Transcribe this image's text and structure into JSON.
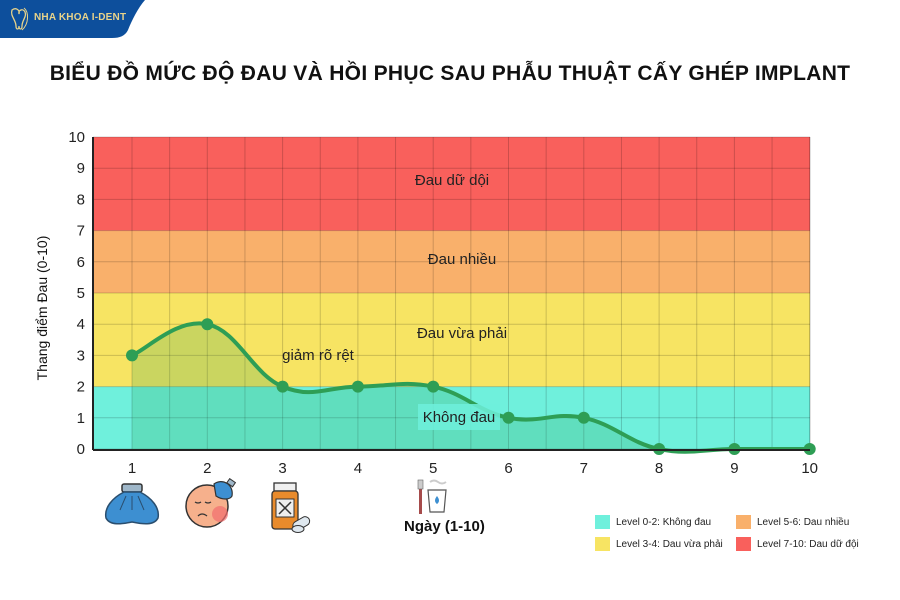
{
  "brand": {
    "name": "NHA KHOA I-DENT",
    "color": "#0d4f9c"
  },
  "title": "BIỂU ĐỒ MỨC ĐỘ ĐAU VÀ HỒI PHỤC SAU PHẪU THUẬT CẤY GHÉP IMPLANT",
  "chart_data": {
    "type": "line",
    "title": "BIỂU ĐỒ MỨC ĐỘ ĐAU VÀ HỒI PHỤC SAU PHẪU THUẬT CẤY GHÉP IMPLANT",
    "xlabel": "Ngày (1-10)",
    "ylabel": "Thang điểm Đau (0-10)",
    "x": [
      1,
      2,
      3,
      4,
      5,
      6,
      7,
      8,
      9,
      10
    ],
    "series": [
      {
        "name": "Mức độ đau",
        "values": [
          3,
          4,
          2,
          2,
          2,
          1,
          1,
          0,
          0,
          0
        ],
        "color": "#2e9e55"
      }
    ],
    "xticks": [
      "1",
      "2",
      "3",
      "4",
      "5",
      "6",
      "7",
      "8",
      "9",
      "10"
    ],
    "yticks": [
      "0",
      "1",
      "2",
      "3",
      "4",
      "5",
      "6",
      "7",
      "8",
      "9",
      "10"
    ],
    "ylim": [
      0,
      10
    ],
    "xlim": [
      0.5,
      10
    ],
    "grid": true,
    "bands": [
      {
        "from": 0,
        "to": 2,
        "label": "Không đau",
        "color": "#6ff0dc"
      },
      {
        "from": 2,
        "to": 5,
        "label": "Đau vừa phải",
        "color": "#f7e463"
      },
      {
        "from": 5,
        "to": 7,
        "label": "Đau nhiều",
        "color": "#f9b06b"
      },
      {
        "from": 7,
        "to": 10,
        "label": "Đau dữ dội",
        "color": "#f9605c"
      }
    ],
    "annotations": [
      {
        "text": "giảm rõ rệt",
        "x": 3.8,
        "y": 3.1
      },
      {
        "text": "Không đau",
        "x": 5.0,
        "y": 1.1
      }
    ],
    "legend": [
      {
        "label": "Level 0-2: Không đau",
        "color": "#6ff0dc"
      },
      {
        "label": "Level 5-6: Dau nhiều",
        "color": "#f9b06b"
      },
      {
        "label": "Level 3-4: Dau vừa phải",
        "color": "#f7e463"
      },
      {
        "label": "Level 7-10: Dau dữ đội",
        "color": "#f9605c"
      }
    ],
    "legend_position": "bottom-right",
    "icons": [
      {
        "day": 1,
        "name": "ice-pack-icon"
      },
      {
        "day": 2,
        "name": "swollen-face-icon"
      },
      {
        "day": 3,
        "name": "medicine-bottle-icon"
      },
      {
        "day": 5,
        "name": "toothbrush-cup-icon"
      }
    ]
  }
}
